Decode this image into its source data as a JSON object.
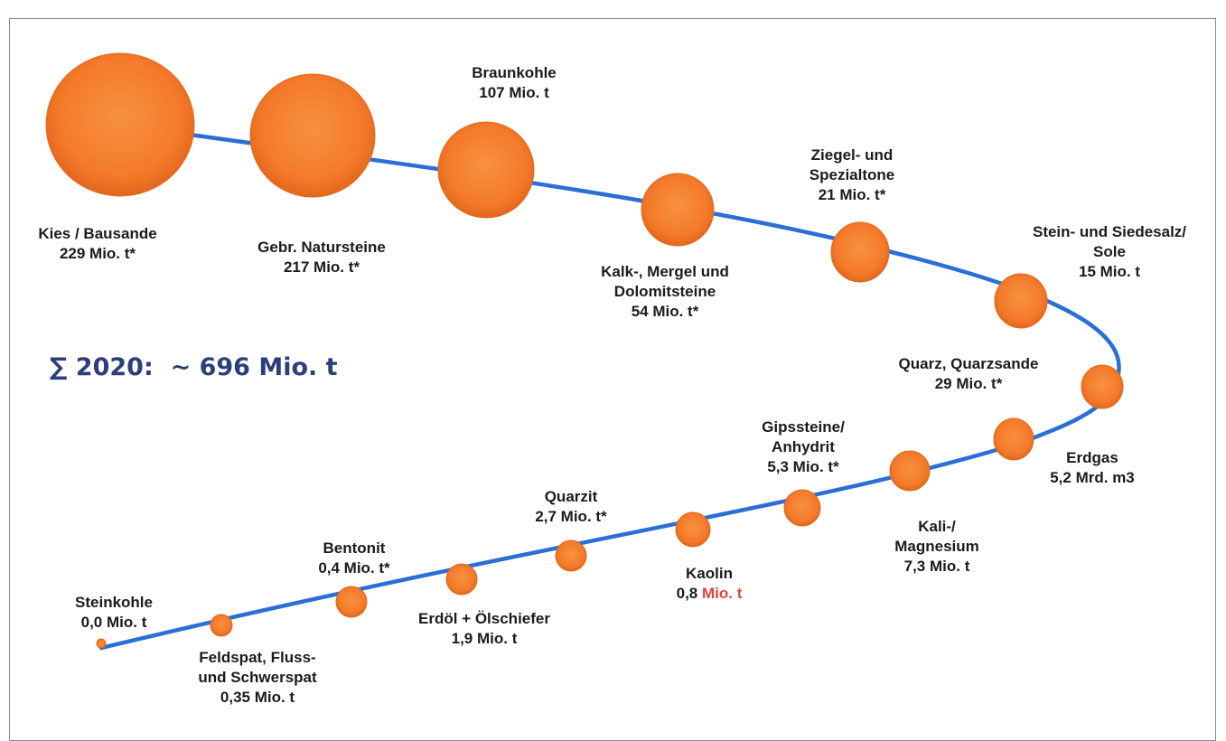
{
  "total": {
    "symbol": "∑",
    "year_label": "2020:",
    "value": "~ 696 Mio. t"
  },
  "ball_color": "#f47a2a",
  "path_color": "#2a6fd6",
  "items": [
    {
      "id": "kies",
      "lines": [
        "Kies / Bausande",
        "229 Mio. t*"
      ]
    },
    {
      "id": "natur",
      "lines": [
        "Gebr. Natursteine",
        "217 Mio. t*"
      ]
    },
    {
      "id": "braun",
      "lines": [
        "Braunkohle",
        "107 Mio. t"
      ]
    },
    {
      "id": "kalk",
      "lines": [
        "Kalk-, Mergel und",
        "Dolomitsteine",
        "54 Mio. t*"
      ]
    },
    {
      "id": "ziegel",
      "lines": [
        "Ziegel- und",
        "Spezialtone",
        "21 Mio. t*"
      ]
    },
    {
      "id": "salz",
      "lines": [
        "Stein- und Siedesalz/",
        "Sole",
        "15 Mio. t"
      ]
    },
    {
      "id": "quarz",
      "lines": [
        "Quarz, Quarzsande",
        "29 Mio. t*"
      ]
    },
    {
      "id": "erdgas",
      "lines": [
        "Erdgas",
        "5,2 Mrd. m3"
      ]
    },
    {
      "id": "kali",
      "lines": [
        "Kali-/",
        "Magnesium",
        "7,3 Mio. t"
      ]
    },
    {
      "id": "gips",
      "lines": [
        "Gipssteine/",
        "Anhydrit",
        "5,3 Mio. t*"
      ]
    },
    {
      "id": "kaolin",
      "lines": [
        "Kaolin"
      ],
      "value_number": "0,8",
      "value_unit": "Mio. t"
    },
    {
      "id": "quarzit",
      "lines": [
        "Quarzit",
        "2,7 Mio. t*"
      ]
    },
    {
      "id": "erdoel",
      "lines": [
        "Erdöl + Ölschiefer",
        "1,9 Mio. t"
      ]
    },
    {
      "id": "bentonit",
      "lines": [
        "Bentonit",
        "0,4 Mio. t*"
      ]
    },
    {
      "id": "feldspat",
      "lines": [
        "Feldspat, Fluss-",
        "und Schwerspat",
        "0,35 Mio. t"
      ]
    },
    {
      "id": "steinkohle",
      "lines": [
        "Steinkohle",
        "0,0 Mio. t"
      ]
    }
  ]
}
